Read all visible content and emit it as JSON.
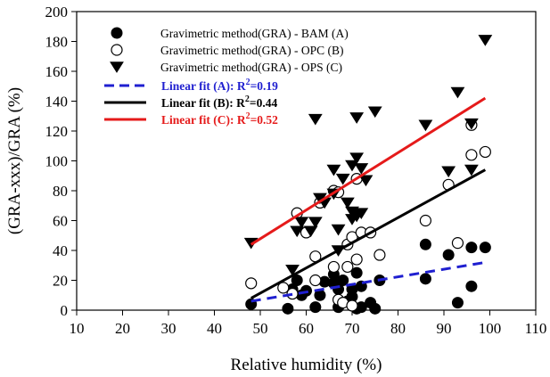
{
  "chart_data": {
    "type": "scatter",
    "xlabel": "Relative humidity (%)",
    "ylabel": "(GRA-xxx)/GRA (%)",
    "xlim": [
      10,
      110
    ],
    "ylim": [
      0,
      200
    ],
    "xticks": [
      10,
      20,
      30,
      40,
      50,
      60,
      70,
      80,
      90,
      100,
      110
    ],
    "yticks": [
      0,
      20,
      40,
      60,
      80,
      100,
      120,
      140,
      160,
      180,
      200
    ],
    "grid": false,
    "legend_position": "top-left",
    "series": [
      {
        "name": "Gravimetric method(GRA) - BAM (A)",
        "marker": "filled-circle",
        "color": "#000000",
        "points": [
          [
            48,
            4
          ],
          [
            56,
            1
          ],
          [
            57,
            14
          ],
          [
            58,
            20
          ],
          [
            59,
            10
          ],
          [
            60,
            13
          ],
          [
            62,
            2
          ],
          [
            63,
            10
          ],
          [
            64,
            19
          ],
          [
            66,
            24
          ],
          [
            66,
            18
          ],
          [
            67,
            14
          ],
          [
            67,
            2
          ],
          [
            68,
            20
          ],
          [
            69,
            6
          ],
          [
            70,
            9
          ],
          [
            70,
            14
          ],
          [
            71,
            25
          ],
          [
            71,
            1
          ],
          [
            72,
            16
          ],
          [
            72,
            2
          ],
          [
            74,
            5
          ],
          [
            75,
            1
          ],
          [
            76,
            20
          ],
          [
            86,
            44
          ],
          [
            86,
            21
          ],
          [
            91,
            37
          ],
          [
            93,
            5
          ],
          [
            96,
            42
          ],
          [
            96,
            16
          ],
          [
            99,
            42
          ]
        ]
      },
      {
        "name": "Gravimetric method(GRA) - OPC (B)",
        "marker": "open-circle",
        "color": "#000000",
        "points": [
          [
            48,
            18
          ],
          [
            55,
            15
          ],
          [
            57,
            11
          ],
          [
            58,
            65
          ],
          [
            60,
            52
          ],
          [
            62,
            20
          ],
          [
            62,
            36
          ],
          [
            63,
            72
          ],
          [
            66,
            80
          ],
          [
            66,
            29
          ],
          [
            67,
            7
          ],
          [
            67,
            79
          ],
          [
            68,
            5
          ],
          [
            69,
            44
          ],
          [
            69,
            29
          ],
          [
            70,
            49
          ],
          [
            70,
            3
          ],
          [
            71,
            34
          ],
          [
            71,
            88
          ],
          [
            72,
            52
          ],
          [
            74,
            52
          ],
          [
            76,
            37
          ],
          [
            86,
            60
          ],
          [
            91,
            84
          ],
          [
            93,
            45
          ],
          [
            96,
            124
          ],
          [
            96,
            104
          ],
          [
            99,
            106
          ]
        ]
      },
      {
        "name": "Gravimetric method(GRA) - OPS (C)",
        "marker": "filled-triangle-down",
        "color": "#000000",
        "points": [
          [
            48,
            45
          ],
          [
            57,
            27
          ],
          [
            58,
            53
          ],
          [
            59,
            59
          ],
          [
            61,
            53
          ],
          [
            62,
            128
          ],
          [
            62,
            59
          ],
          [
            63,
            75
          ],
          [
            64,
            72
          ],
          [
            66,
            94
          ],
          [
            66,
            78
          ],
          [
            67,
            40
          ],
          [
            67,
            54
          ],
          [
            68,
            88
          ],
          [
            69,
            72
          ],
          [
            70,
            61
          ],
          [
            70,
            66
          ],
          [
            70,
            97
          ],
          [
            71,
            129
          ],
          [
            71,
            102
          ],
          [
            71,
            63
          ],
          [
            72,
            95
          ],
          [
            72,
            65
          ],
          [
            73,
            87
          ],
          [
            75,
            133
          ],
          [
            86,
            124
          ],
          [
            91,
            93
          ],
          [
            93,
            146
          ],
          [
            96,
            94
          ],
          [
            96,
            125
          ],
          [
            99,
            181
          ]
        ]
      }
    ],
    "fits": [
      {
        "label": "Linear fit (A): R",
        "sup": "2",
        "r2": "=0.19",
        "color": "#1f1fd0",
        "dash": true,
        "x": [
          48,
          99
        ],
        "y": [
          6,
          32
        ]
      },
      {
        "label": "Linear fit (B): R",
        "sup": "2",
        "r2": "=0.44",
        "color": "#000000",
        "dash": false,
        "x": [
          48,
          99
        ],
        "y": [
          8,
          94
        ]
      },
      {
        "label": "Linear fit (C): R",
        "sup": "2",
        "r2": "=0.52",
        "color": "#e51a1a",
        "dash": false,
        "x": [
          48,
          99
        ],
        "y": [
          44,
          142
        ]
      }
    ]
  }
}
